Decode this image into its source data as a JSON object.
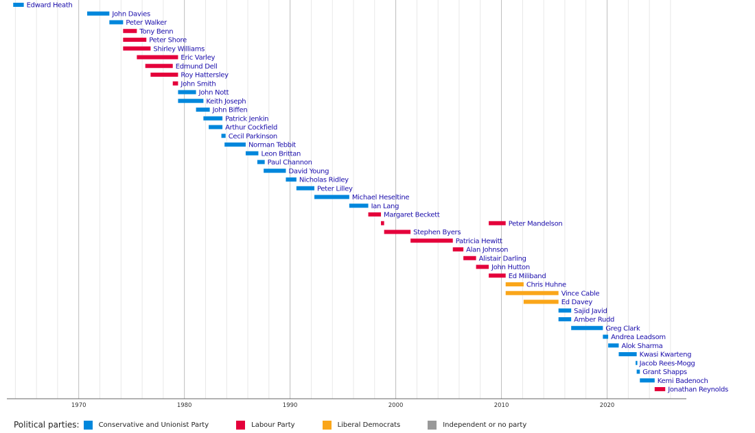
{
  "chart_data": {
    "type": "timeline",
    "x_range": [
      1963.2,
      2027.5
    ],
    "x_ticks": [
      1970,
      1980,
      1990,
      2000,
      2010,
      2020
    ],
    "grid": true,
    "legend": {
      "title": "Political parties:",
      "items": [
        {
          "key": "con",
          "label": "Conservative and Unionist Party",
          "color": "#0087DC"
        },
        {
          "key": "lab",
          "label": "Labour Party",
          "color": "#E4003B"
        },
        {
          "key": "ld",
          "label": "Liberal Democrats",
          "color": "#FAA61A"
        },
        {
          "key": "ind",
          "label": "Independent or no party",
          "color": "#999999"
        }
      ]
    },
    "rows": [
      {
        "name": "Edward Heath",
        "terms": [
          {
            "start": 1963.8,
            "end": 1964.8,
            "party": "con"
          }
        ]
      },
      {
        "name": "John Davies",
        "terms": [
          {
            "start": 1970.8,
            "end": 1972.9,
            "party": "con"
          }
        ]
      },
      {
        "name": "Peter Walker",
        "terms": [
          {
            "start": 1972.9,
            "end": 1974.2,
            "party": "con"
          }
        ]
      },
      {
        "name": "Tony Benn",
        "terms": [
          {
            "start": 1974.2,
            "end": 1975.5,
            "party": "lab"
          }
        ]
      },
      {
        "name": "Peter Shore",
        "terms": [
          {
            "start": 1974.2,
            "end": 1976.4,
            "party": "lab"
          }
        ]
      },
      {
        "name": "Shirley Williams",
        "terms": [
          {
            "start": 1974.2,
            "end": 1976.8,
            "party": "lab"
          }
        ]
      },
      {
        "name": "Eric Varley",
        "terms": [
          {
            "start": 1975.5,
            "end": 1979.4,
            "party": "lab"
          }
        ]
      },
      {
        "name": "Edmund Dell",
        "terms": [
          {
            "start": 1976.3,
            "end": 1978.9,
            "party": "lab"
          }
        ]
      },
      {
        "name": "Roy Hattersley",
        "terms": [
          {
            "start": 1976.8,
            "end": 1979.4,
            "party": "lab"
          }
        ]
      },
      {
        "name": "John Smith",
        "terms": [
          {
            "start": 1978.9,
            "end": 1979.4,
            "party": "lab"
          }
        ]
      },
      {
        "name": "John Nott",
        "terms": [
          {
            "start": 1979.4,
            "end": 1981.1,
            "party": "con"
          }
        ]
      },
      {
        "name": "Keith Joseph",
        "terms": [
          {
            "start": 1979.4,
            "end": 1981.8,
            "party": "con"
          }
        ]
      },
      {
        "name": "John Biffen",
        "terms": [
          {
            "start": 1981.1,
            "end": 1982.4,
            "party": "con"
          }
        ]
      },
      {
        "name": "Patrick Jenkin",
        "terms": [
          {
            "start": 1981.8,
            "end": 1983.6,
            "party": "con"
          }
        ]
      },
      {
        "name": "Arthur Cockfield",
        "terms": [
          {
            "start": 1982.3,
            "end": 1983.6,
            "party": "con"
          }
        ]
      },
      {
        "name": "Cecil Parkinson",
        "terms": [
          {
            "start": 1983.5,
            "end": 1983.9,
            "party": "con"
          }
        ]
      },
      {
        "name": "Norman Tebbit",
        "terms": [
          {
            "start": 1983.8,
            "end": 1985.8,
            "party": "con"
          }
        ]
      },
      {
        "name": "Leon Brittan",
        "terms": [
          {
            "start": 1985.8,
            "end": 1987.0,
            "party": "con"
          }
        ]
      },
      {
        "name": "Paul Channon",
        "terms": [
          {
            "start": 1986.9,
            "end": 1987.6,
            "party": "con"
          }
        ]
      },
      {
        "name": "David Young",
        "terms": [
          {
            "start": 1987.5,
            "end": 1989.6,
            "party": "con"
          }
        ]
      },
      {
        "name": "Nicholas Ridley",
        "terms": [
          {
            "start": 1989.6,
            "end": 1990.6,
            "party": "con"
          }
        ]
      },
      {
        "name": "Peter Lilley",
        "terms": [
          {
            "start": 1990.6,
            "end": 1992.3,
            "party": "con"
          }
        ]
      },
      {
        "name": "Michael Heseltine",
        "terms": [
          {
            "start": 1992.3,
            "end": 1995.6,
            "party": "con"
          }
        ]
      },
      {
        "name": "Ian Lang",
        "terms": [
          {
            "start": 1995.6,
            "end": 1997.4,
            "party": "con"
          }
        ]
      },
      {
        "name": "Margaret Beckett",
        "terms": [
          {
            "start": 1997.4,
            "end": 1998.6,
            "party": "lab"
          }
        ]
      },
      {
        "name": "Peter Mandelson",
        "terms": [
          {
            "start": 1998.6,
            "end": 1998.9,
            "party": "lab"
          },
          {
            "start": 2008.8,
            "end": 2010.4,
            "party": "lab"
          }
        ]
      },
      {
        "name": "Stephen Byers",
        "terms": [
          {
            "start": 1998.9,
            "end": 2001.4,
            "party": "lab"
          }
        ]
      },
      {
        "name": "Patricia Hewitt",
        "terms": [
          {
            "start": 2001.4,
            "end": 2005.4,
            "party": "lab"
          }
        ]
      },
      {
        "name": "Alan Johnson",
        "terms": [
          {
            "start": 2005.4,
            "end": 2006.4,
            "party": "lab"
          }
        ]
      },
      {
        "name": "Alistair Darling",
        "terms": [
          {
            "start": 2006.4,
            "end": 2007.6,
            "party": "lab"
          }
        ]
      },
      {
        "name": "John Hutton",
        "terms": [
          {
            "start": 2007.6,
            "end": 2008.8,
            "party": "lab"
          }
        ]
      },
      {
        "name": "Ed Miliband",
        "terms": [
          {
            "start": 2008.8,
            "end": 2010.4,
            "party": "lab"
          }
        ]
      },
      {
        "name": "Chris Huhne",
        "terms": [
          {
            "start": 2010.4,
            "end": 2012.1,
            "party": "ld"
          }
        ]
      },
      {
        "name": "Vince Cable",
        "terms": [
          {
            "start": 2010.4,
            "end": 2015.4,
            "party": "ld"
          }
        ]
      },
      {
        "name": "Ed Davey",
        "terms": [
          {
            "start": 2012.1,
            "end": 2015.4,
            "party": "ld"
          }
        ]
      },
      {
        "name": "Sajid Javid",
        "terms": [
          {
            "start": 2015.4,
            "end": 2016.6,
            "party": "con"
          }
        ]
      },
      {
        "name": "Amber Rudd",
        "terms": [
          {
            "start": 2015.4,
            "end": 2016.6,
            "party": "con"
          }
        ]
      },
      {
        "name": "Greg Clark",
        "terms": [
          {
            "start": 2016.6,
            "end": 2019.6,
            "party": "con"
          }
        ]
      },
      {
        "name": "Andrea Leadsom",
        "terms": [
          {
            "start": 2019.6,
            "end": 2020.1,
            "party": "con"
          }
        ]
      },
      {
        "name": "Alok Sharma",
        "terms": [
          {
            "start": 2020.1,
            "end": 2021.1,
            "party": "con"
          }
        ]
      },
      {
        "name": "Kwasi Kwarteng",
        "terms": [
          {
            "start": 2021.1,
            "end": 2022.8,
            "party": "con"
          }
        ]
      },
      {
        "name": "Jacob Rees-Mogg",
        "terms": [
          {
            "start": 2022.7,
            "end": 2022.8,
            "party": "con"
          }
        ]
      },
      {
        "name": "Grant Shapps",
        "terms": [
          {
            "start": 2022.8,
            "end": 2023.1,
            "party": "con"
          }
        ]
      },
      {
        "name": "Kemi Badenoch",
        "terms": [
          {
            "start": 2023.1,
            "end": 2024.5,
            "party": "con"
          }
        ]
      },
      {
        "name": "Jonathan Reynolds",
        "terms": [
          {
            "start": 2024.5,
            "end": 2025.5,
            "party": "lab"
          }
        ]
      }
    ]
  }
}
